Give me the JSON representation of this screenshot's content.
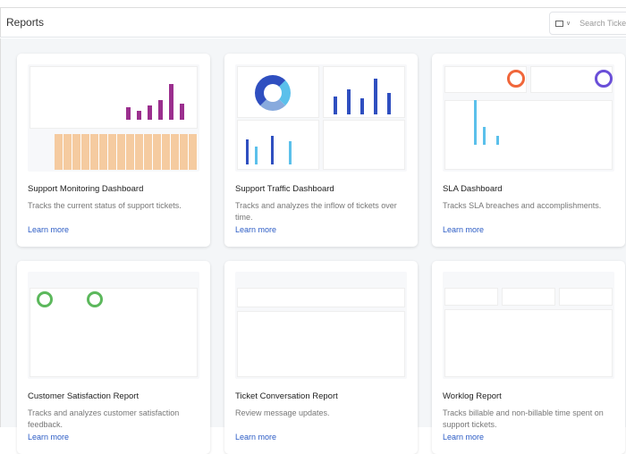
{
  "header": {
    "title": "Reports",
    "search_placeholder": "Search Tickets"
  },
  "cards": [
    {
      "title": "Support Monitoring Dashboard",
      "description": "Tracks the current status of support tickets.",
      "link": "Learn more"
    },
    {
      "title": "Support Traffic Dashboard",
      "description": "Tracks and analyzes the inflow of tickets over time.",
      "link": "Learn more"
    },
    {
      "title": "SLA Dashboard",
      "description": "Tracks SLA breaches and accomplishments.",
      "link": "Learn more"
    },
    {
      "title": "Customer Satisfaction Report",
      "description": "Tracks and analyzes customer satisfaction feedback.",
      "link": "Learn more"
    },
    {
      "title": "Ticket Conversation Report",
      "description": "Review message updates.",
      "link": "Learn more"
    },
    {
      "title": "Worklog Report",
      "description": "Tracks billable and non-billable time spent on support tickets.",
      "link": "Learn more"
    }
  ],
  "colors": {
    "link": "#2c5cc5",
    "purple": "#9b2f8e",
    "blue": "#2f4fc0",
    "orange": "#f0a35a"
  }
}
